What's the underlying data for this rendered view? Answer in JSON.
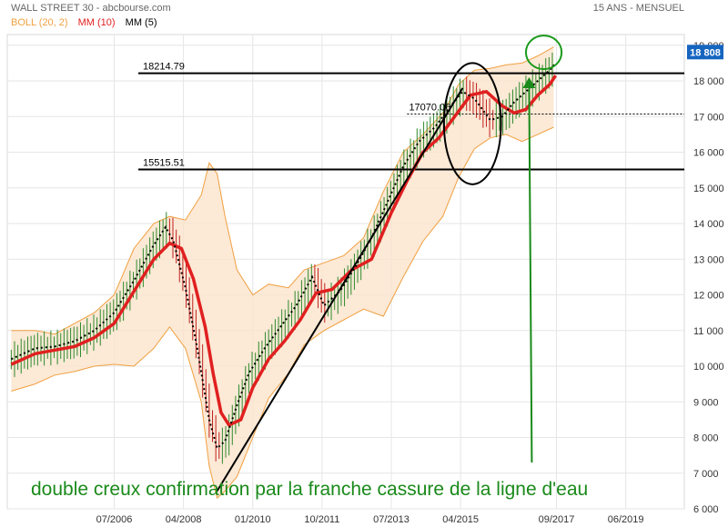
{
  "header": {
    "title": "WALL STREET 30 - abcbourse.com",
    "period": "15 ANS - MENSUEL"
  },
  "legend": [
    {
      "label": "BOLL (20, 2)",
      "color": "#f0a040"
    },
    {
      "label": "MM (10)",
      "color": "#e02020"
    },
    {
      "label": "MM (5)",
      "color": "#000000"
    }
  ],
  "chart_data": {
    "type": "line",
    "title": "WALL STREET 30",
    "y_ticks": [
      "19 000",
      "18 000",
      "17 000",
      "16 000",
      "15 000",
      "14 000",
      "13 000",
      "12 000",
      "11 000",
      "10 000",
      "9 000",
      "8 000",
      "7 000",
      "6 000"
    ],
    "y_tick_values": [
      19000,
      18000,
      17000,
      16000,
      15000,
      14000,
      13000,
      12000,
      11000,
      10000,
      9000,
      8000,
      7000,
      6000
    ],
    "ylim": [
      6000,
      19300
    ],
    "x_ticks": [
      "07/2006",
      "04/2008",
      "01/2010",
      "10/2011",
      "07/2013",
      "04/2015",
      "09/2017",
      "06/2019"
    ],
    "x_tick_values": [
      2006.5,
      2008.25,
      2010.0,
      2011.75,
      2013.5,
      2015.25,
      2017.67,
      2019.42
    ],
    "xlim": [
      2003.8,
      2020.9
    ],
    "last_value": {
      "label": "18 808",
      "value": 18808
    },
    "horizontal_levels": [
      {
        "label": "18214.79",
        "value": 18214.79,
        "style": "solid"
      },
      {
        "label": "17070.06",
        "value": 17070.06,
        "style": "dotted"
      },
      {
        "label": "15515.51",
        "value": 15515.51,
        "style": "solid"
      }
    ],
    "series": [
      {
        "name": "MM (10)",
        "color": "#e02020",
        "x": [
          2003.9,
          2004.5,
          2005.0,
          2005.5,
          2006.0,
          2006.5,
          2007.0,
          2007.5,
          2007.9,
          2008.2,
          2008.5,
          2008.8,
          2009.0,
          2009.2,
          2009.4,
          2009.7,
          2010.0,
          2010.4,
          2010.8,
          2011.2,
          2011.6,
          2012.0,
          2012.5,
          2013.0,
          2013.5,
          2013.9,
          2014.3,
          2014.7,
          2015.1,
          2015.5,
          2015.9,
          2016.3,
          2016.6,
          2016.9,
          2017.2,
          2017.5,
          2017.65
        ],
        "values": [
          10050,
          10350,
          10450,
          10550,
          10800,
          11200,
          12100,
          13000,
          13450,
          13300,
          12450,
          11100,
          9800,
          8700,
          8350,
          8500,
          9400,
          10200,
          10700,
          11300,
          12050,
          12150,
          12700,
          13000,
          14300,
          15200,
          16000,
          16400,
          17000,
          17600,
          17700,
          17300,
          17100,
          17200,
          17600,
          17900,
          18150
        ]
      },
      {
        "name": "MM (5)",
        "color": "#000000",
        "x": [
          2003.9,
          2004.5,
          2005.0,
          2005.5,
          2006.0,
          2006.5,
          2007.0,
          2007.5,
          2007.8,
          2008.0,
          2008.3,
          2008.6,
          2008.9,
          2009.1,
          2009.3,
          2009.6,
          2009.9,
          2010.3,
          2010.7,
          2011.1,
          2011.5,
          2011.8,
          2012.2,
          2012.6,
          2013.0,
          2013.4,
          2013.8,
          2014.2,
          2014.6,
          2015.0,
          2015.3,
          2015.6,
          2016.0,
          2016.3,
          2016.6,
          2016.9,
          2017.2,
          2017.5,
          2017.65
        ],
        "values": [
          10200,
          10500,
          10550,
          10700,
          11000,
          11500,
          12400,
          13400,
          13900,
          13500,
          12200,
          10500,
          8500,
          7700,
          7900,
          8900,
          9800,
          10500,
          11100,
          11700,
          12500,
          11700,
          12100,
          12800,
          13600,
          14600,
          15600,
          16300,
          16700,
          17300,
          17700,
          17500,
          16900,
          17000,
          17400,
          17700,
          18000,
          18300,
          18500
        ]
      },
      {
        "name": "BOLL (20, 2)",
        "color": "#f0a040",
        "upper_x": [
          2003.9,
          2004.5,
          2005.0,
          2005.5,
          2006.0,
          2006.5,
          2007.0,
          2007.5,
          2007.9,
          2008.3,
          2008.7,
          2008.9,
          2009.1,
          2009.3,
          2009.6,
          2010.0,
          2010.4,
          2010.9,
          2011.3,
          2011.8,
          2012.3,
          2012.8,
          2013.3,
          2013.8,
          2014.3,
          2014.8,
          2015.2,
          2015.6,
          2016.0,
          2016.4,
          2016.8,
          2017.2,
          2017.6
        ],
        "upper": [
          11000,
          11000,
          10900,
          11200,
          11500,
          12000,
          13300,
          14000,
          14200,
          14100,
          14800,
          15700,
          15400,
          14200,
          12700,
          12000,
          12300,
          12200,
          12700,
          12900,
          13100,
          13600,
          14900,
          16000,
          16500,
          17100,
          17900,
          18300,
          18350,
          18450,
          18500,
          18700,
          18950
        ],
        "lower_x": [
          2003.9,
          2004.5,
          2005.0,
          2005.5,
          2006.0,
          2006.5,
          2007.0,
          2007.5,
          2007.9,
          2008.3,
          2008.7,
          2008.9,
          2009.1,
          2009.3,
          2009.6,
          2010.0,
          2010.4,
          2010.9,
          2011.3,
          2011.8,
          2012.3,
          2012.8,
          2013.3,
          2013.8,
          2014.3,
          2014.8,
          2015.2,
          2015.6,
          2016.0,
          2016.4,
          2016.8,
          2017.2,
          2017.6
        ],
        "lower": [
          9300,
          9500,
          9750,
          9850,
          10000,
          10050,
          10000,
          10500,
          11100,
          10500,
          9000,
          7200,
          6300,
          6500,
          6900,
          8000,
          9100,
          9800,
          10600,
          11000,
          11300,
          11600,
          11400,
          12500,
          13500,
          14200,
          15300,
          16100,
          16400,
          16500,
          16300,
          16500,
          16700
        ]
      }
    ],
    "annotations": [
      {
        "type": "trendline",
        "from": [
          2009.1,
          6500
        ],
        "to": [
          2015.3,
          17800
        ],
        "color": "#000000"
      },
      {
        "type": "ellipse",
        "center": [
          2015.55,
          16800
        ],
        "rx_years": 0.72,
        "ry_value": 1700,
        "color": "#000000"
      },
      {
        "type": "circle",
        "center": [
          2017.35,
          18800
        ],
        "rx_years": 0.45,
        "ry_value": 470,
        "color": "#1a9a1a"
      },
      {
        "type": "arrow",
        "from": [
          2017.6,
          7300
        ],
        "to": [
          2017.6,
          18000
        ],
        "color": "#1a8a1a"
      },
      {
        "type": "text",
        "text": "double creux  confirmation par la franche cassure de la ligne d'eau",
        "color": "#1a8a1a"
      }
    ]
  }
}
